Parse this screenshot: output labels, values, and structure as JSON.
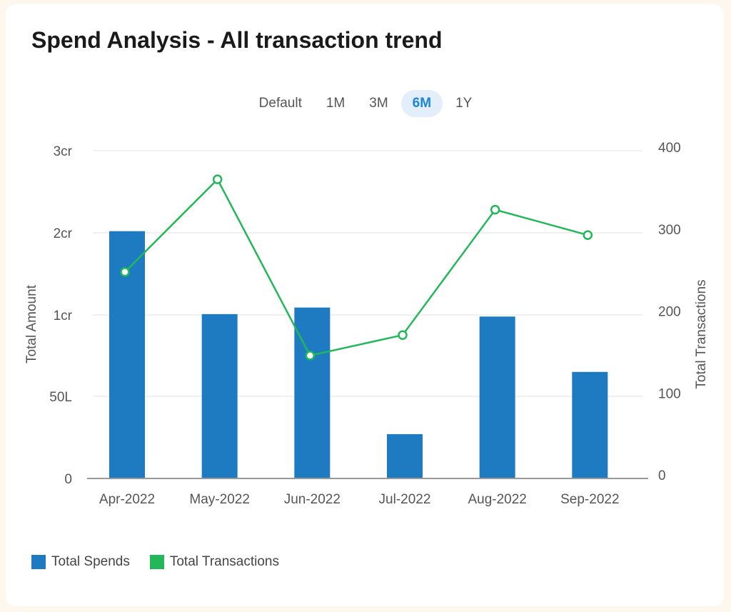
{
  "header": {
    "title": "Spend Analysis - All transaction trend"
  },
  "range_tabs": [
    {
      "label": "Default",
      "active": false
    },
    {
      "label": "1M",
      "active": false
    },
    {
      "label": "3M",
      "active": false
    },
    {
      "label": "6M",
      "active": true
    },
    {
      "label": "1Y",
      "active": false
    }
  ],
  "colors": {
    "bar": "#1f7bc1",
    "line": "#22b85a",
    "grid": "#ececec",
    "axis": "#999999",
    "text": "#555555"
  },
  "chart_data": {
    "type": "bar",
    "categories": [
      "Apr-2022",
      "May-2022",
      "Jun-2022",
      "Jul-2022",
      "Aug-2022",
      "Sep-2022"
    ],
    "series": [
      {
        "name": "Total Spends",
        "type": "bar",
        "axis": "left",
        "values": [
          2.02,
          1.01,
          1.09,
          0.27,
          0.99,
          0.65
        ]
      },
      {
        "name": "Total Transactions",
        "type": "line",
        "axis": "right",
        "values": [
          252,
          365,
          150,
          175,
          328,
          297
        ]
      }
    ],
    "ylabel": "Total Amount",
    "y2label": "Total Transactions",
    "ylim": [
      0,
      3
    ],
    "y2lim": [
      0,
      400
    ],
    "yticks": [
      {
        "value": 0,
        "label": "0"
      },
      {
        "value": 0.5,
        "label": "50L"
      },
      {
        "value": 1,
        "label": "1cr"
      },
      {
        "value": 2,
        "label": "2cr"
      },
      {
        "value": 3,
        "label": "3cr"
      }
    ],
    "y2ticks": [
      {
        "value": 0,
        "label": "0"
      },
      {
        "value": 100,
        "label": "100"
      },
      {
        "value": 200,
        "label": "200"
      },
      {
        "value": 300,
        "label": "300"
      },
      {
        "value": 400,
        "label": "400"
      }
    ],
    "grid": true,
    "legend": "bottom-left"
  }
}
